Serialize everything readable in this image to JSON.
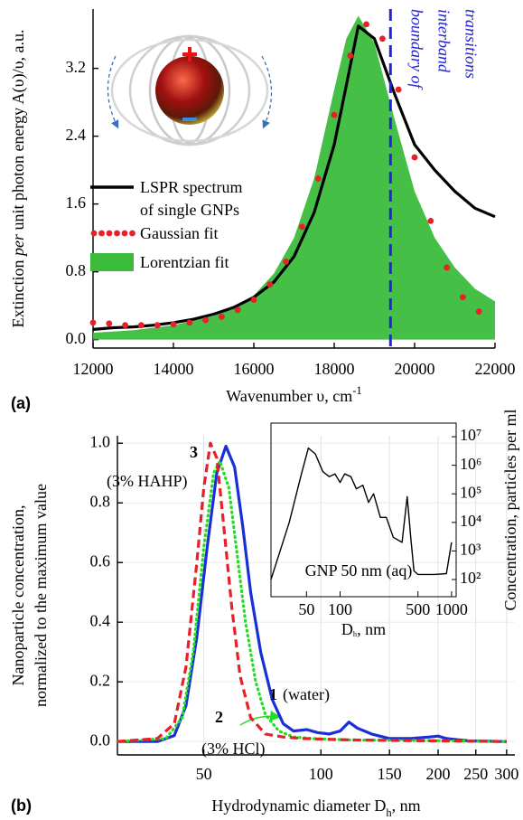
{
  "chart_data": [
    {
      "type": "line",
      "panel_label": "(a)",
      "x_label": [
        [
          {
            "text": "Wavenumber υ, cm"
          },
          {
            "text": "-1",
            "sup": true
          }
        ]
      ],
      "y_label": [
        [
          {
            "text": "Extinction "
          },
          {
            "text": "per",
            "italic": true
          },
          {
            "text": " unit photon energy A(υ)/υ, a.u."
          }
        ]
      ],
      "xlim": [
        12000,
        22000
      ],
      "xticks": [
        12000,
        14000,
        16000,
        18000,
        20000,
        22000
      ],
      "ylim": [
        -0.1,
        3.9
      ],
      "yticks": [
        {
          "value": 0,
          "label": "0.0"
        },
        0.8,
        1.6,
        2.4,
        3.2
      ],
      "grid": false,
      "legend": "center left",
      "vline": {
        "x": 19400,
        "color": "#2323d8",
        "label": "boundary of interband transitions"
      },
      "series": [
        {
          "name": "Lorentzian fit",
          "style": "area",
          "color": "#3cbc3c",
          "x": [
            12000,
            13000,
            14000,
            15000,
            15500,
            16000,
            16500,
            17000,
            17500,
            18000,
            18300,
            18600,
            19000,
            19500,
            20000,
            20500,
            21000,
            21500,
            22000
          ],
          "values": [
            0.08,
            0.11,
            0.17,
            0.28,
            0.38,
            0.52,
            0.78,
            1.2,
            1.9,
            2.95,
            3.55,
            3.82,
            3.5,
            2.6,
            1.75,
            1.2,
            0.85,
            0.6,
            0.45
          ]
        },
        {
          "name": "LSPR spectrum of single GNPs",
          "style": "solid",
          "color": "#000000",
          "x": [
            12000,
            12500,
            13000,
            13500,
            14000,
            14500,
            15000,
            15500,
            16000,
            16500,
            17000,
            17500,
            18000,
            18300,
            18600,
            19000,
            19500,
            20000,
            20500,
            21000,
            21500,
            22000
          ],
          "values": [
            0.12,
            0.14,
            0.15,
            0.17,
            0.2,
            0.24,
            0.3,
            0.38,
            0.5,
            0.68,
            0.98,
            1.5,
            2.3,
            3.0,
            3.7,
            3.55,
            2.9,
            2.3,
            2.0,
            1.75,
            1.55,
            1.45
          ]
        },
        {
          "name": "Gaussian fit",
          "style": "dots",
          "color": "#e8202a",
          "x": [
            12000,
            12400,
            12800,
            13200,
            13600,
            14000,
            14400,
            14800,
            15200,
            15600,
            16000,
            16400,
            16800,
            17200,
            17600,
            18000,
            18400,
            18800,
            19200,
            19600,
            20000,
            20400,
            20800,
            21200,
            21600
          ],
          "values": [
            0.2,
            0.19,
            0.17,
            0.17,
            0.17,
            0.18,
            0.2,
            0.23,
            0.27,
            0.35,
            0.47,
            0.65,
            0.92,
            1.33,
            1.9,
            2.65,
            3.35,
            3.72,
            3.55,
            2.95,
            2.15,
            1.4,
            0.85,
            0.5,
            0.33
          ]
        }
      ]
    },
    {
      "type": "line",
      "panel_label": "(b)",
      "x_scale": "log",
      "x_label": [
        [
          {
            "text": "Hydrodynamic diameter D"
          },
          {
            "text": "h",
            "sub": true
          },
          {
            "text": ", nm"
          }
        ]
      ],
      "y_label": [
        [
          {
            "text": "Nanoparticle concentration,"
          }
        ],
        [
          {
            "text": "normalized to the maximum value"
          }
        ]
      ],
      "xlim": [
        30,
        315
      ],
      "xticks": [
        50,
        100,
        150,
        200,
        250,
        300
      ],
      "ylim": [
        -0.045,
        1.025
      ],
      "yticks": [
        {
          "value": 0,
          "label": "0.0"
        },
        0.2,
        0.4,
        0.6,
        0.8,
        {
          "value": 1,
          "label": "1.0"
        }
      ],
      "grid": true,
      "series": [
        {
          "name": "1",
          "note": "(water)",
          "style": "solid",
          "color": "#1a2fd6",
          "x": [
            30,
            38,
            42,
            45,
            48,
            51,
            54,
            57,
            60,
            63,
            66,
            70,
            75,
            80,
            85,
            92,
            98,
            105,
            112,
            118,
            124,
            135,
            150,
            170,
            190,
            200,
            210,
            240,
            300
          ],
          "values": [
            0,
            0,
            0.02,
            0.12,
            0.35,
            0.65,
            0.9,
            0.99,
            0.92,
            0.72,
            0.5,
            0.3,
            0.14,
            0.06,
            0.035,
            0.04,
            0.03,
            0.025,
            0.035,
            0.065,
            0.045,
            0.025,
            0.01,
            0.01,
            0.015,
            0.018,
            0.01,
            0.002,
            0
          ]
        },
        {
          "name": "2",
          "note": "(3% HCl)",
          "style": "dotted",
          "color": "#22dd22",
          "x": [
            30,
            40,
            44,
            47,
            50,
            53,
            55,
            58,
            61,
            64,
            68,
            72,
            78,
            85,
            95,
            120,
            200,
            300
          ],
          "values": [
            0,
            0.01,
            0.08,
            0.3,
            0.65,
            0.9,
            0.94,
            0.85,
            0.62,
            0.4,
            0.2,
            0.09,
            0.035,
            0.015,
            0.01,
            0.005,
            0.003,
            0
          ]
        },
        {
          "name": "3",
          "note": "(3% HAHP)",
          "style": "dashed",
          "color": "#e8202a",
          "x": [
            30,
            38,
            42,
            45,
            48,
            50,
            52,
            54,
            56,
            59,
            62,
            66,
            72,
            80,
            90,
            100,
            120,
            200,
            300
          ],
          "values": [
            0,
            0.01,
            0.06,
            0.25,
            0.6,
            0.85,
            1.0,
            0.95,
            0.75,
            0.45,
            0.22,
            0.08,
            0.025,
            0.015,
            0.01,
            0.008,
            0.005,
            0.002,
            0
          ]
        }
      ]
    },
    {
      "type": "line",
      "x_scale": "log",
      "y_scale": "log",
      "y_axis": "right",
      "annotation": "GNP 50 nm (aq)",
      "x_label": [
        [
          {
            "text": "D"
          },
          {
            "text": "h",
            "sub": true
          },
          {
            "text": ", nm"
          }
        ]
      ],
      "y_label": [
        [
          {
            "text": "Concentration, particles per ml"
          }
        ]
      ],
      "xlim": [
        24,
        1100
      ],
      "xticks": [
        50,
        100,
        500,
        1000
      ],
      "ylim": [
        25,
        30000000
      ],
      "yticks": [
        {
          "value": 100,
          "label": "10²"
        },
        {
          "value": 1000,
          "label": "10³"
        },
        {
          "value": 10000,
          "label": "10⁴"
        },
        {
          "value": 100000,
          "label": "10⁵"
        },
        {
          "value": 1000000,
          "label": "10⁶"
        },
        {
          "value": 10000000,
          "label": "10⁷"
        }
      ],
      "grid": false,
      "series": [
        {
          "style": "solid",
          "color": "#000000",
          "x": [
            24,
            35,
            45,
            52,
            60,
            70,
            80,
            90,
            100,
            110,
            125,
            140,
            160,
            180,
            200,
            230,
            260,
            300,
            360,
            400,
            430,
            460,
            500,
            700,
            900,
            1000
          ],
          "values": [
            100,
            10000,
            500000,
            4000000,
            2500000,
            600000,
            400000,
            500000,
            250000,
            500000,
            400000,
            150000,
            200000,
            50000,
            100000,
            15000,
            15000,
            3000,
            2000,
            80000,
            3000,
            200,
            150,
            150,
            160,
            2000
          ]
        }
      ]
    }
  ]
}
